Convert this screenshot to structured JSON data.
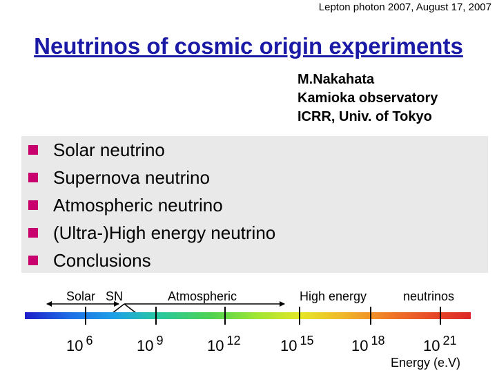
{
  "header": {
    "conference": "Lepton photon 2007, August 17, 2007",
    "title": "Neutrinos of cosmic origin experiments",
    "author_lines": [
      "M.Nakahata",
      "Kamioka observatory",
      "ICRR, Univ. of Tokyo"
    ]
  },
  "outline": {
    "items": [
      "Solar neutrino",
      "Supernova neutrino",
      "Atmospheric neutrino",
      "(Ultra-)High energy neutrino",
      "Conclusions"
    ],
    "bullet_color": "#c8006e"
  },
  "energy_scale": {
    "labels": {
      "solar": "Solar",
      "sn": "SN",
      "atmospheric": "Atmospheric",
      "high_energy": "High energy",
      "neutrinos": "neutrinos"
    },
    "decades": [
      {
        "base": "10",
        "exp": "6"
      },
      {
        "base": "10",
        "exp": "9"
      },
      {
        "base": "10",
        "exp": "12"
      },
      {
        "base": "10",
        "exp": "15"
      },
      {
        "base": "10",
        "exp": "18"
      },
      {
        "base": "10",
        "exp": "21"
      }
    ],
    "axis_label": "Energy (e.V)"
  },
  "colors": {
    "title": "#1a1aa6",
    "outline_background": "#e9e9e9"
  }
}
